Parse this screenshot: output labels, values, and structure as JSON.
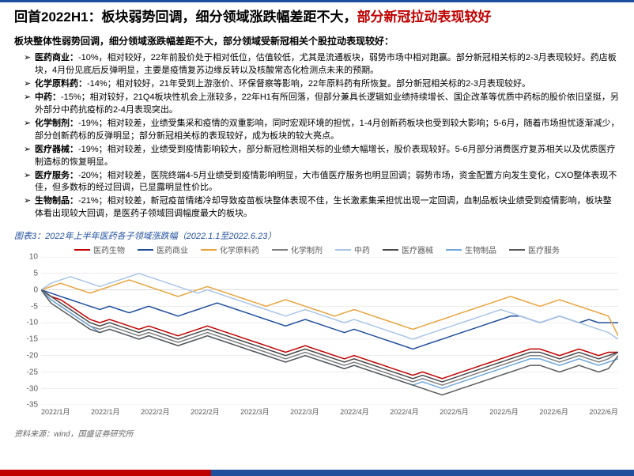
{
  "title": {
    "prefix": "回首2022H1：板块弱势回调，细分领域涨跌幅差距不大，",
    "emphasis": "部分新冠拉动表现较好",
    "prefix_color": "#000000",
    "emphasis_color": "#c00000",
    "fontsize": 17
  },
  "subtitle": "板块整体性弱势回调，细分领域涨跌幅差距不大，部分领域受新冠相关个股拉动表现较好：",
  "bullets": [
    {
      "lead": "医药商业：",
      "text": "-10%，相对较好，22年前股价处于相对低位，估值较低，尤其是流通板块，弱势市场中相对跑赢。部分新冠相关标的2-3月表现较好。药店板块，4月份见底后反弹明显，主要是疫情复苏边缘反转以及核酸常态化检测点未来的预期。"
    },
    {
      "lead": "化学原料药：",
      "text": "-14%；相对较好，21年受到上游涨价、环保督察等影响，22年原料药有所恢复。部分新冠相关标的2-3月表现较好。"
    },
    {
      "lead": "中药：",
      "text": "-15%；相对较好，21Q4板块性机会上涨较多，22年H1有所回落，但部分兼具长逻辑如业绩持续增长、国企改革等优质中药标的股价依旧坚挺，另外部分中药抗疫标的2-4月表现突出。"
    },
    {
      "lead": "化学制剂：",
      "text": "-19%；相对较差，业绩受集采和疫情的双重影响，同时宏观环境的担忧，1-4月创新药板块也受到较大影响；5-6月，随着市场担忧逐渐减少，部分创新药标的反弹明显；部分新冠相关标的表现较好，成为板块的较大亮点。"
    },
    {
      "lead": "医疗器械：",
      "text": "-19%；相对较差，业绩受到疫情影响较大，部分新冠检测相关标的业绩大幅增长，股价表现较好。5-6月部分消费医疗复苏相关以及优质医疗制造标的恢复明显。"
    },
    {
      "lead": "医疗服务：",
      "text": "-20%；相对较差，医院终端4-5月业绩受到疫情影响明显，大市值医疗服务也明显回调；弱势市场，资金配置方向发生变化，CXO整体表现不佳，但多数标的经过回调，已显露明显性价比。"
    },
    {
      "lead": "生物制品：",
      "text": "-21%；相对较差，新冠疫苗情绪冷却导致疫苗板块整体表现不佳，生长激素集采担忧出现一定回调，血制品板块业绩受到疫情影响，板块整体看出现较大回调，是医药子领域回调幅度最大的板块。"
    }
  ],
  "chart": {
    "caption": "图表3：2022年上半年医药各子领域涨跌幅（2022.1.1至2022.6.23）",
    "type": "line",
    "background_color": "#ffffff",
    "grid_color": "#d9d9d9",
    "axis_color": "#bfbfbf",
    "label_fontsize": 10,
    "ylim": [
      -35,
      10
    ],
    "ytick_step": 5,
    "x_labels": [
      "2022/1月",
      "2022/1月",
      "2022/2月",
      "2022/2月",
      "2022/3月",
      "2022/3月",
      "2022/4月",
      "2022/4月",
      "2022/5月",
      "2022/5月",
      "2022/6月",
      "2022/6月"
    ],
    "n_points": 60,
    "legend_fontsize": 10,
    "line_width": 1.5,
    "series": [
      {
        "name": "医药生物",
        "color": "#c00000",
        "values": [
          0,
          -2,
          -3,
          -5,
          -7,
          -9,
          -10,
          -9,
          -10,
          -11,
          -12,
          -11,
          -12,
          -13,
          -14,
          -13,
          -12,
          -11,
          -12,
          -13,
          -14,
          -15,
          -16,
          -17,
          -18,
          -19,
          -18,
          -17,
          -18,
          -19,
          -20,
          -21,
          -20,
          -21,
          -22,
          -23,
          -24,
          -25,
          -26,
          -25,
          -26,
          -27,
          -26,
          -25,
          -24,
          -23,
          -22,
          -21,
          -20,
          -19,
          -18,
          -18,
          -19,
          -20,
          -19,
          -18,
          -19,
          -20,
          -19,
          -19
        ]
      },
      {
        "name": "医药商业",
        "color": "#1f4e9c",
        "values": [
          0,
          -1,
          -2,
          -3,
          -4,
          -5,
          -6,
          -5,
          -6,
          -7,
          -6,
          -5,
          -6,
          -7,
          -8,
          -7,
          -6,
          -5,
          -4,
          -5,
          -6,
          -7,
          -8,
          -9,
          -10,
          -11,
          -10,
          -9,
          -10,
          -11,
          -12,
          -13,
          -12,
          -13,
          -14,
          -15,
          -16,
          -17,
          -18,
          -17,
          -16,
          -15,
          -14,
          -13,
          -12,
          -11,
          -10,
          -9,
          -8,
          -8,
          -9,
          -10,
          -9,
          -8,
          -9,
          -10,
          -9,
          -10,
          -10,
          -10
        ]
      },
      {
        "name": "化学原料药",
        "color": "#e8a33d",
        "values": [
          0,
          1,
          2,
          1,
          0,
          -1,
          0,
          1,
          2,
          3,
          2,
          1,
          0,
          -1,
          -2,
          -1,
          0,
          1,
          0,
          -1,
          -2,
          -3,
          -4,
          -5,
          -4,
          -3,
          -4,
          -5,
          -6,
          -7,
          -8,
          -7,
          -6,
          -7,
          -8,
          -9,
          -10,
          -11,
          -12,
          -11,
          -10,
          -9,
          -8,
          -7,
          -6,
          -5,
          -4,
          -3,
          -2,
          -3,
          -4,
          -5,
          -4,
          -3,
          -4,
          -5,
          -6,
          -7,
          -8,
          -14
        ]
      },
      {
        "name": "化学制剂",
        "color": "#7f7f7f",
        "values": [
          0,
          -3,
          -5,
          -7,
          -9,
          -11,
          -12,
          -11,
          -12,
          -13,
          -14,
          -13,
          -14,
          -15,
          -16,
          -15,
          -14,
          -13,
          -14,
          -15,
          -16,
          -17,
          -18,
          -19,
          -20,
          -21,
          -20,
          -19,
          -20,
          -21,
          -22,
          -23,
          -22,
          -23,
          -24,
          -25,
          -26,
          -27,
          -28,
          -27,
          -28,
          -29,
          -28,
          -27,
          -26,
          -25,
          -24,
          -23,
          -22,
          -21,
          -20,
          -20,
          -21,
          -22,
          -21,
          -20,
          -21,
          -22,
          -21,
          -19
        ]
      },
      {
        "name": "中药",
        "color": "#a9c4e6",
        "values": [
          0,
          2,
          3,
          4,
          3,
          2,
          1,
          2,
          3,
          4,
          5,
          4,
          3,
          2,
          1,
          0,
          -1,
          0,
          -1,
          -2,
          -3,
          -4,
          -5,
          -6,
          -7,
          -8,
          -7,
          -6,
          -7,
          -8,
          -9,
          -10,
          -9,
          -10,
          -11,
          -12,
          -13,
          -14,
          -15,
          -14,
          -13,
          -12,
          -11,
          -10,
          -9,
          -8,
          -7,
          -6,
          -7,
          -8,
          -9,
          -10,
          -9,
          -8,
          -9,
          -10,
          -11,
          -12,
          -13,
          -15
        ]
      },
      {
        "name": "医疗器械",
        "color": "#4a4a4a",
        "values": [
          0,
          -2,
          -4,
          -6,
          -8,
          -10,
          -11,
          -10,
          -11,
          -12,
          -13,
          -12,
          -13,
          -14,
          -15,
          -14,
          -13,
          -12,
          -13,
          -14,
          -15,
          -16,
          -17,
          -18,
          -19,
          -20,
          -19,
          -18,
          -19,
          -20,
          -21,
          -22,
          -21,
          -22,
          -23,
          -24,
          -25,
          -26,
          -27,
          -26,
          -27,
          -28,
          -27,
          -26,
          -25,
          -24,
          -23,
          -22,
          -21,
          -20,
          -19,
          -19,
          -20,
          -21,
          -20,
          -19,
          -20,
          -21,
          -20,
          -19
        ]
      },
      {
        "name": "生物制品",
        "color": "#6fa8dc",
        "values": [
          0,
          -3,
          -5,
          -7,
          -9,
          -11,
          -13,
          -12,
          -13,
          -14,
          -15,
          -14,
          -15,
          -16,
          -17,
          -16,
          -15,
          -14,
          -15,
          -16,
          -17,
          -18,
          -19,
          -20,
          -21,
          -22,
          -21,
          -20,
          -21,
          -22,
          -23,
          -24,
          -23,
          -24,
          -25,
          -26,
          -27,
          -28,
          -29,
          -28,
          -29,
          -30,
          -29,
          -28,
          -27,
          -26,
          -25,
          -24,
          -23,
          -22,
          -21,
          -21,
          -22,
          -23,
          -22,
          -21,
          -22,
          -23,
          -22,
          -21
        ]
      },
      {
        "name": "医疗服务",
        "color": "#595959",
        "values": [
          0,
          -4,
          -6,
          -8,
          -10,
          -12,
          -13,
          -12,
          -13,
          -14,
          -15,
          -14,
          -15,
          -16,
          -17,
          -16,
          -15,
          -14,
          -15,
          -16,
          -17,
          -18,
          -19,
          -20,
          -21,
          -22,
          -21,
          -20,
          -21,
          -22,
          -23,
          -24,
          -23,
          -24,
          -25,
          -26,
          -27,
          -28,
          -29,
          -30,
          -31,
          -32,
          -31,
          -30,
          -29,
          -28,
          -27,
          -26,
          -25,
          -24,
          -23,
          -23,
          -24,
          -25,
          -24,
          -23,
          -24,
          -25,
          -24,
          -20
        ]
      }
    ]
  },
  "source": "资料来源：wind，国盛证券研究所",
  "colors": {
    "top_divider": "#1f4e9c",
    "bottom_red": "#c00000",
    "bottom_blue": "#1f4e9c"
  }
}
